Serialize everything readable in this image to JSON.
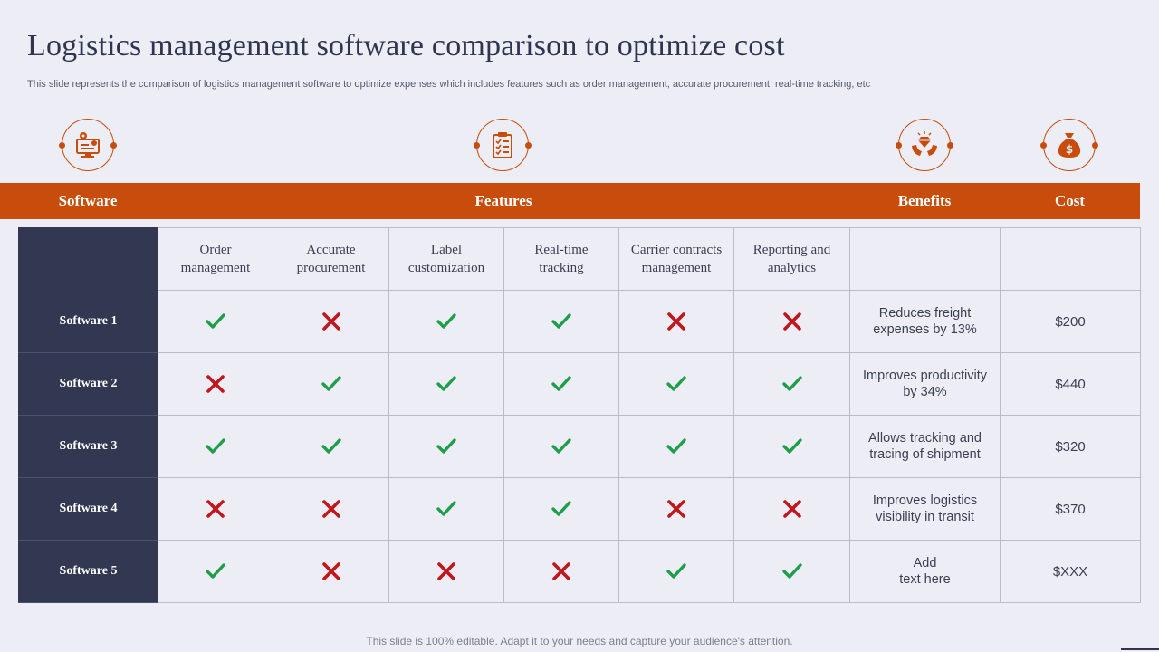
{
  "title": "Logistics management software comparison to optimize cost",
  "subtitle": "This slide represents the comparison of logistics management software to optimize expenses which includes features such as order management, accurate procurement, real-time tracking, etc",
  "icons": [
    "monitor-gear-icon",
    "clipboard-checklist-icon",
    "hands-diamond-icon",
    "money-bag-icon"
  ],
  "colors": {
    "accent": "#c84c0c",
    "navy": "#333852",
    "check": "#1f9e4a",
    "cross": "#c0171c",
    "background": "#ecedf5"
  },
  "header": {
    "software": "Software",
    "features": "Features",
    "benefits": "Benefits",
    "cost": "Cost"
  },
  "feature_columns": [
    "Order\nmanagement",
    "Accurate\nprocurement",
    "Label\ncustomization",
    "Real-time\ntracking",
    "Carrier contracts\nmanagement",
    "Reporting and\nanalytics"
  ],
  "rows": [
    {
      "name": "Software 1",
      "features": [
        true,
        false,
        true,
        true,
        false,
        false
      ],
      "benefit": "Reduces freight\nexpenses by 13%",
      "cost": "$200"
    },
    {
      "name": "Software 2",
      "features": [
        false,
        true,
        true,
        true,
        true,
        true
      ],
      "benefit": "Improves productivity\nby 34%",
      "cost": "$440"
    },
    {
      "name": "Software 3",
      "features": [
        true,
        true,
        true,
        true,
        true,
        true
      ],
      "benefit": "Allows tracking and\ntracing of shipment",
      "cost": "$320"
    },
    {
      "name": "Software 4",
      "features": [
        false,
        false,
        true,
        true,
        false,
        false
      ],
      "benefit": "Improves logistics\nvisibility in transit",
      "cost": "$370"
    },
    {
      "name": "Software 5",
      "features": [
        true,
        false,
        false,
        false,
        true,
        true
      ],
      "benefit": "Add\ntext here",
      "cost": "$XXX"
    }
  ],
  "footer": "This slide is 100% editable. Adapt it to your needs and capture your audience's attention."
}
